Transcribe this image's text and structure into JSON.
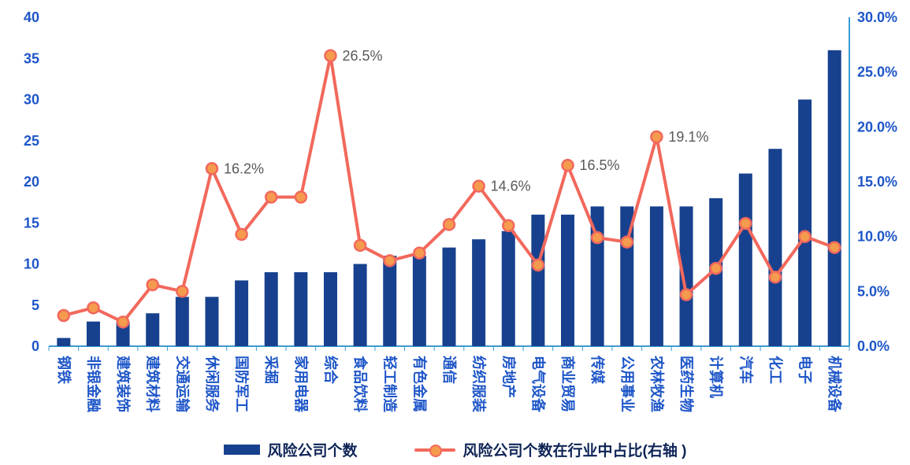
{
  "chart_data": {
    "type": "bar+line combo",
    "title": "",
    "categories": [
      "钢铁",
      "非银金融",
      "建筑装饰",
      "建筑材料",
      "交通运输",
      "休闲服务",
      "国防军工",
      "采掘",
      "家用电器",
      "综合",
      "食品饮料",
      "轻工制造",
      "有色金属",
      "通信",
      "纺织服装",
      "房地产",
      "电气设备",
      "商业贸易",
      "传媒",
      "公用事业",
      "农林牧渔",
      "医药生物",
      "计算机",
      "汽车",
      "化工",
      "电子",
      "机械设备"
    ],
    "series": [
      {
        "name": "风险公司个数",
        "type": "bar",
        "axis": "left",
        "values": [
          1,
          3,
          3,
          4,
          6,
          6,
          8,
          9,
          9,
          9,
          10,
          11,
          11,
          12,
          13,
          14,
          16,
          16,
          17,
          17,
          17,
          17,
          18,
          21,
          24,
          30,
          36
        ]
      },
      {
        "name": "风险公司个数在行业中占比(右轴 )",
        "type": "line",
        "axis": "right",
        "values": [
          2.8,
          3.5,
          2.2,
          5.6,
          5.0,
          16.2,
          10.2,
          13.6,
          13.6,
          26.5,
          9.2,
          7.8,
          8.5,
          11.1,
          14.6,
          11.0,
          7.4,
          16.5,
          9.9,
          9.5,
          19.1,
          4.7,
          7.1,
          11.2,
          6.3,
          10.0,
          9.0
        ]
      }
    ],
    "left_axis": {
      "min": 0,
      "max": 40,
      "step": 5,
      "tick_labels": [
        "0",
        "5",
        "10",
        "15",
        "20",
        "25",
        "30",
        "35",
        "40"
      ]
    },
    "right_axis": {
      "min": 0,
      "max": 30,
      "step": 5,
      "tick_labels": [
        "0.0%",
        "5.0%",
        "10.0%",
        "15.0%",
        "20.0%",
        "25.0%",
        "30.0%"
      ]
    },
    "point_labels": [
      {
        "index": 5,
        "text": "16.2%"
      },
      {
        "index": 9,
        "text": "26.5%"
      },
      {
        "index": 14,
        "text": "14.6%"
      },
      {
        "index": 17,
        "text": "16.5%"
      },
      {
        "index": 20,
        "text": "19.1%"
      }
    ],
    "grid": false,
    "legend_position": "bottom",
    "colors": {
      "bar": "#17418e",
      "line": "#f2685c",
      "marker_fill": "#f59b4e",
      "marker_stroke": "#f2685c",
      "axis_line": "#3a9bd5",
      "axis_text": "#1e56c8",
      "data_label": "#595959",
      "legend_text": "#0f2557"
    }
  }
}
